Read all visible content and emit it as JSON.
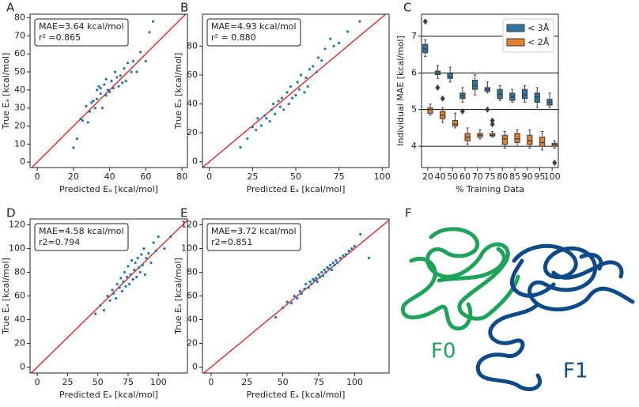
{
  "chart_data": [
    {
      "type": "scatter",
      "panel_label": "A",
      "xlabel": "Predicted Eₐ [kcal/mol]",
      "ylabel": "True Eₐ [kcal/mol]",
      "annotations": [
        "MAE=3.64 kcal/mol",
        "r² =0.865"
      ],
      "color": "#1f77b4",
      "diagonal": true,
      "xlim": [
        -4,
        83
      ],
      "ylim": [
        -3,
        82
      ],
      "xticks": [
        0,
        20,
        40,
        60,
        80
      ],
      "yticks": [
        0,
        10,
        20,
        30,
        40,
        50,
        60,
        70,
        80
      ],
      "x": [
        20,
        22,
        24,
        25,
        27,
        28,
        29,
        30,
        31,
        32,
        33,
        33,
        34,
        35,
        35,
        36,
        37,
        38,
        38,
        39,
        40,
        41,
        42,
        43,
        44,
        45,
        46,
        47,
        48,
        49,
        50,
        52,
        53,
        55,
        57,
        60,
        62,
        64
      ],
      "y": [
        8,
        13,
        24,
        23,
        31,
        22,
        28,
        33,
        34,
        30,
        40,
        35,
        42,
        38,
        41,
        30,
        43,
        37,
        46,
        40,
        39,
        45,
        41,
        50,
        47,
        42,
        48,
        44,
        52,
        45,
        55,
        50,
        56,
        50,
        61,
        56,
        72,
        78
      ]
    },
    {
      "type": "scatter",
      "panel_label": "B",
      "xlabel": "Predicted Eₐ [kcal/mol]",
      "ylabel": "True Eₐ [kcal/mol]",
      "annotations": [
        "MAE=4.93 kcal/mol",
        "r² = 0.880"
      ],
      "color": "#1f77b4",
      "diagonal": true,
      "xlim": [
        -4,
        104
      ],
      "ylim": [
        -4,
        102
      ],
      "xticks": [
        0,
        25,
        50,
        75,
        100
      ],
      "yticks": [
        0,
        20,
        40,
        60,
        80
      ],
      "x": [
        18,
        22,
        25,
        27,
        28,
        30,
        32,
        33,
        35,
        36,
        37,
        38,
        40,
        41,
        42,
        43,
        45,
        46,
        47,
        48,
        50,
        51,
        52,
        53,
        55,
        56,
        57,
        58,
        60,
        62,
        63,
        65,
        67,
        70,
        72,
        75,
        80,
        87
      ],
      "y": [
        10,
        16,
        24,
        22,
        30,
        25,
        32,
        30,
        28,
        36,
        40,
        33,
        42,
        38,
        44,
        36,
        48,
        40,
        52,
        44,
        46,
        55,
        50,
        60,
        48,
        58,
        52,
        64,
        66,
        62,
        72,
        70,
        78,
        85,
        80,
        82,
        90,
        97
      ]
    },
    {
      "type": "box",
      "panel_label": "C",
      "xlabel": "% Training Data",
      "ylabel": "Individual MAE [kcal/mol]",
      "categories": [
        "20",
        "40",
        "50",
        "60",
        "70",
        "75",
        "80",
        "85",
        "90",
        "95",
        "100"
      ],
      "ylim": [
        3.42,
        7.6
      ],
      "yticks": [
        4,
        5,
        6,
        7
      ],
      "grid": true,
      "legend": "upper-right",
      "series": [
        {
          "name": "< 3Å",
          "color": "#3274a1",
          "whislo": [
            6.45,
            5.85,
            5.75,
            5.2,
            5.4,
            5.45,
            5.25,
            5.2,
            5.2,
            5.05,
            5.05
          ],
          "q1": [
            6.55,
            5.95,
            5.85,
            5.3,
            5.55,
            5.5,
            5.3,
            5.25,
            5.3,
            5.2,
            5.12
          ],
          "med": [
            6.65,
            6.0,
            5.9,
            5.38,
            5.65,
            5.55,
            5.42,
            5.35,
            5.4,
            5.35,
            5.2
          ],
          "q3": [
            6.78,
            6.05,
            6.0,
            5.45,
            5.8,
            5.6,
            5.55,
            5.45,
            5.55,
            5.45,
            5.28
          ],
          "whishi": [
            6.9,
            6.2,
            6.15,
            5.6,
            5.95,
            5.75,
            5.65,
            5.55,
            5.65,
            5.6,
            5.45
          ],
          "outliers": [
            [
              7.4
            ],
            [
              5.6
            ],
            [],
            [
              4.95
            ],
            [],
            [
              5.0
            ],
            [],
            [],
            [],
            [],
            []
          ]
        },
        {
          "name": "< 2Å",
          "color": "#e1812c",
          "whislo": [
            4.85,
            4.65,
            4.5,
            4.05,
            4.2,
            4.25,
            3.95,
            4.0,
            3.95,
            3.9,
            3.95
          ],
          "q1": [
            4.9,
            4.75,
            4.55,
            4.15,
            4.25,
            4.28,
            4.05,
            4.1,
            4.05,
            4.0,
            4.0
          ],
          "med": [
            5.0,
            4.85,
            4.6,
            4.25,
            4.3,
            4.3,
            4.2,
            4.2,
            4.15,
            4.1,
            4.05
          ],
          "q3": [
            5.05,
            4.95,
            4.7,
            4.35,
            4.35,
            4.35,
            4.3,
            4.35,
            4.3,
            4.25,
            4.08
          ],
          "whishi": [
            5.15,
            5.05,
            4.9,
            4.5,
            4.45,
            4.4,
            4.4,
            4.45,
            4.45,
            4.4,
            4.15
          ],
          "outliers": [
            [],
            [
              5.3
            ],
            [],
            [],
            [],
            [
              4.6,
              4.7
            ],
            [],
            [],
            [],
            [],
            [
              3.55
            ]
          ]
        }
      ]
    },
    {
      "type": "scatter",
      "panel_label": "D",
      "xlabel": "Predicted Eₐ [kcal/mol]",
      "ylabel": "True Eₐ [kcal/mol]",
      "annotations": [
        "MAE=4.58 kcal/mol",
        "r2=0.794"
      ],
      "color": "#1f77b4",
      "diagonal": true,
      "xlim": [
        -6,
        124
      ],
      "ylim": [
        -5,
        125
      ],
      "xticks": [
        0,
        25,
        50,
        75,
        100
      ],
      "yticks": [
        0,
        20,
        40,
        60,
        80,
        100,
        120
      ],
      "x": [
        48,
        52,
        55,
        58,
        60,
        62,
        63,
        65,
        66,
        68,
        69,
        70,
        71,
        72,
        73,
        74,
        75,
        76,
        77,
        78,
        79,
        80,
        81,
        82,
        83,
        84,
        85,
        86,
        87,
        88,
        89,
        90,
        92,
        94,
        96,
        98,
        100,
        105,
        110
      ],
      "y": [
        45,
        52,
        48,
        60,
        56,
        65,
        62,
        58,
        70,
        67,
        75,
        64,
        72,
        80,
        68,
        76,
        85,
        70,
        78,
        90,
        74,
        82,
        88,
        76,
        92,
        84,
        80,
        95,
        86,
        100,
        78,
        92,
        96,
        88,
        105,
        98,
        110,
        100,
        110
      ]
    },
    {
      "type": "scatter",
      "panel_label": "E",
      "xlabel": "Predicted Eₐ [kcal/mol]",
      "ylabel": "True Eₐ [kcal/mol]",
      "annotations": [
        "MAE=3.72 kcal/mol",
        "r2=0.851"
      ],
      "color": "#1f77b4",
      "diagonal": true,
      "xlim": [
        -6,
        124
      ],
      "ylim": [
        -5,
        125
      ],
      "xticks": [
        0,
        25,
        50,
        75,
        100
      ],
      "yticks": [
        0,
        20,
        40,
        60,
        80,
        100,
        120
      ],
      "x": [
        45,
        50,
        53,
        56,
        58,
        60,
        62,
        63,
        65,
        66,
        68,
        69,
        70,
        71,
        72,
        73,
        74,
        75,
        76,
        77,
        78,
        79,
        80,
        81,
        82,
        83,
        84,
        85,
        86,
        87,
        88,
        90,
        92,
        94,
        96,
        98,
        100,
        104,
        110
      ],
      "y": [
        42,
        50,
        55,
        54,
        60,
        58,
        64,
        62,
        66,
        70,
        67,
        72,
        70,
        74,
        73,
        75,
        72,
        78,
        76,
        80,
        77,
        82,
        80,
        84,
        83,
        86,
        82,
        88,
        86,
        90,
        88,
        92,
        94,
        95,
        98,
        100,
        102,
        112,
        92
      ]
    }
  ],
  "image": {
    "panel_label": "F",
    "labels": [
      "F0",
      "F1"
    ]
  }
}
